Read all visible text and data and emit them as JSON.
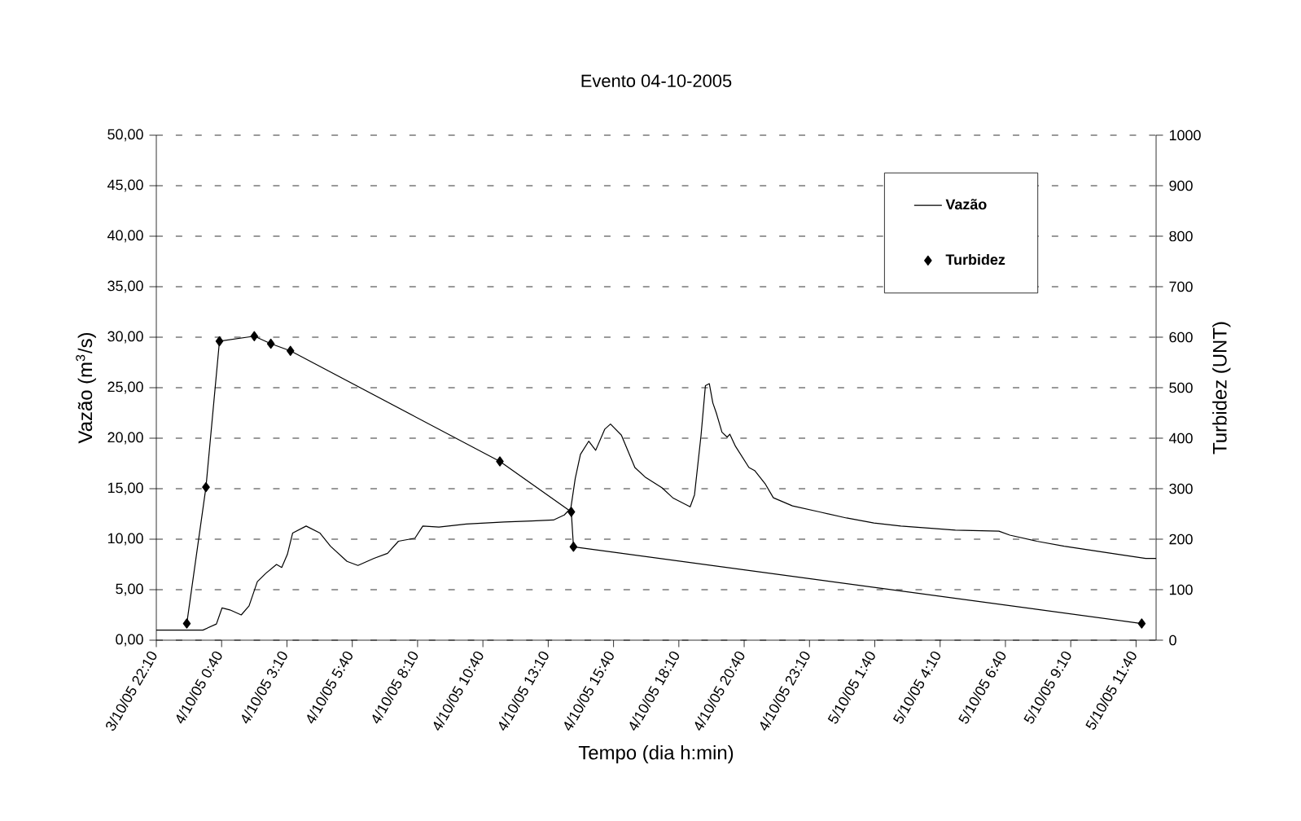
{
  "chart_data": {
    "type": "line",
    "title": "Evento 04-10-2005",
    "xlabel": "Tempo (dia h:min)",
    "ylabel": "Vazão (m$^{3}$/s)",
    "y2label": "Turbidez (UNT)",
    "xlim": [
      "2005-10-03T22:10",
      "2005-10-05T12:26"
    ],
    "xticks": [
      {
        "value": "2005-10-03T22:10",
        "label": "3/10/05 22:10"
      },
      {
        "value": "2005-10-04T00:40",
        "label": "4/10/05 0:40"
      },
      {
        "value": "2005-10-04T03:10",
        "label": "4/10/05 3:10"
      },
      {
        "value": "2005-10-04T05:40",
        "label": "4/10/05 5:40"
      },
      {
        "value": "2005-10-04T08:10",
        "label": "4/10/05 8:10"
      },
      {
        "value": "2005-10-04T10:40",
        "label": "4/10/05 10:40"
      },
      {
        "value": "2005-10-04T13:10",
        "label": "4/10/05 13:10"
      },
      {
        "value": "2005-10-04T15:40",
        "label": "4/10/05 15:40"
      },
      {
        "value": "2005-10-04T18:10",
        "label": "4/10/05 18:10"
      },
      {
        "value": "2005-10-04T20:40",
        "label": "4/10/05 20:40"
      },
      {
        "value": "2005-10-04T23:10",
        "label": "4/10/05 23:10"
      },
      {
        "value": "2005-10-05T01:40",
        "label": "5/10/05 1:40"
      },
      {
        "value": "2005-10-05T04:10",
        "label": "5/10/05 4:10"
      },
      {
        "value": "2005-10-05T06:40",
        "label": "5/10/05 6:40"
      },
      {
        "value": "2005-10-05T09:10",
        "label": "5/10/05 9:10"
      },
      {
        "value": "2005-10-05T11:40",
        "label": "5/10/05 11:40"
      }
    ],
    "ylim": [
      0,
      50
    ],
    "yticks": [
      {
        "value": 0,
        "label": "0,00"
      },
      {
        "value": 5,
        "label": "5,00"
      },
      {
        "value": 10,
        "label": "10,00"
      },
      {
        "value": 15,
        "label": "15,00"
      },
      {
        "value": 20,
        "label": "20,00"
      },
      {
        "value": 25,
        "label": "25,00"
      },
      {
        "value": 30,
        "label": "30,00"
      },
      {
        "value": 35,
        "label": "35,00"
      },
      {
        "value": 40,
        "label": "40,00"
      },
      {
        "value": 45,
        "label": "45,00"
      },
      {
        "value": 50,
        "label": "50,00"
      }
    ],
    "y2lim": [
      0,
      1000
    ],
    "y2ticks": [
      0,
      100,
      200,
      300,
      400,
      500,
      600,
      700,
      800,
      900,
      1000
    ],
    "grid": "y",
    "legend": "top right",
    "line_style": "solid",
    "series": [
      {
        "name": "Vazão",
        "color": "#000000",
        "marker": "none",
        "x": [
          "2005-10-03T22:10",
          "2005-10-03T23:57",
          "2005-10-04T00:28",
          "2005-10-04T00:41",
          "2005-10-04T00:59",
          "2005-10-04T01:25",
          "2005-10-04T01:43",
          "2005-10-04T02:02",
          "2005-10-04T02:21",
          "2005-10-04T02:46",
          "2005-10-04T02:58",
          "2005-10-04T03:11",
          "2005-10-04T03:23",
          "2005-10-04T03:54",
          "2005-10-04T04:26",
          "2005-10-04T04:50",
          "2005-10-04T05:28",
          "2005-10-04T05:53",
          "2005-10-04T06:30",
          "2005-10-04T07:01",
          "2005-10-04T07:26",
          "2005-10-04T08:04",
          "2005-10-04T08:22",
          "2005-10-04T08:59",
          "2005-10-04T10:02",
          "2005-10-04T11:29",
          "2005-10-04T12:32",
          "2005-10-04T13:22",
          "2005-10-04T13:47",
          "2005-10-04T14:02",
          "2005-10-04T14:12",
          "2005-10-04T14:24",
          "2005-10-04T14:43",
          "2005-10-04T14:59",
          "2005-10-04T15:20",
          "2005-10-04T15:33",
          "2005-10-04T15:58",
          "2005-10-04T16:29",
          "2005-10-04T16:54",
          "2005-10-04T17:31",
          "2005-10-04T17:56",
          "2005-10-04T18:36",
          "2005-10-04T18:46",
          "2005-10-04T19:01",
          "2005-10-04T19:11",
          "2005-10-04T19:20",
          "2005-10-04T19:28",
          "2005-10-04T19:36",
          "2005-10-04T19:49",
          "2005-10-04T20:01",
          "2005-10-04T20:07",
          "2005-10-04T20:20",
          "2005-10-04T20:51",
          "2005-10-04T21:04",
          "2005-10-04T21:28",
          "2005-10-04T21:47",
          "2005-10-04T22:31",
          "2005-10-04T23:33",
          "2005-10-05T00:35",
          "2005-10-05T01:38",
          "2005-10-05T02:40",
          "2005-10-05T03:43",
          "2005-10-05T04:45",
          "2005-10-05T06:25",
          "2005-10-05T06:50",
          "2005-10-05T07:52",
          "2005-10-05T08:55",
          "2005-10-05T09:57",
          "2005-10-05T10:59",
          "2005-10-05T12:02",
          "2005-10-05T12:26"
        ],
        "values": [
          1.0,
          1.0,
          1.6,
          3.2,
          3.0,
          2.5,
          3.4,
          5.8,
          6.6,
          7.5,
          7.2,
          8.5,
          10.6,
          11.3,
          10.6,
          9.3,
          7.8,
          7.4,
          8.1,
          8.6,
          9.8,
          10.1,
          11.3,
          11.2,
          11.5,
          11.7,
          11.8,
          11.9,
          12.4,
          13.1,
          16.0,
          18.4,
          19.7,
          18.8,
          20.9,
          21.4,
          20.3,
          17.1,
          16.1,
          15.1,
          14.1,
          13.2,
          14.4,
          20.3,
          25.2,
          25.4,
          23.5,
          22.5,
          20.6,
          20.1,
          20.4,
          19.2,
          17.1,
          16.8,
          15.5,
          14.1,
          13.3,
          12.7,
          12.1,
          11.6,
          11.3,
          11.1,
          10.9,
          10.8,
          10.4,
          9.8,
          9.3,
          8.9,
          8.5,
          8.1,
          8.1
        ]
      },
      {
        "name": "Turbidez",
        "color": "#000000",
        "marker": "diamond",
        "axis": "y2",
        "x": [
          "2005-10-03T23:20",
          "2005-10-04T00:04",
          "2005-10-04T00:35",
          "2005-10-04T01:55",
          "2005-10-04T02:33",
          "2005-10-04T03:18",
          "2005-10-04T11:19",
          "2005-10-04T14:03",
          "2005-10-04T14:08",
          "2005-10-05T11:53"
        ],
        "values": [
          33,
          303,
          592,
          602,
          587,
          573,
          354,
          254,
          185,
          33
        ]
      }
    ]
  }
}
